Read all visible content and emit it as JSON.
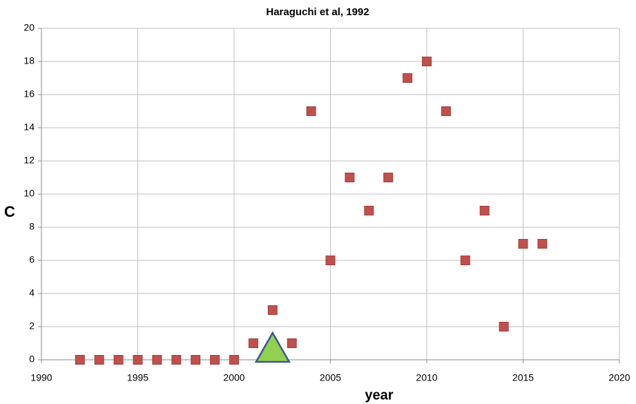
{
  "chart_data": {
    "type": "scatter",
    "title": "Haraguchi et al, 1992",
    "xlabel": "year",
    "ylabel": "C",
    "xlim": [
      1990,
      2020
    ],
    "xticks": [
      1990,
      1995,
      2000,
      2005,
      2010,
      2015,
      2020
    ],
    "ylim": [
      0,
      20
    ],
    "yticks": [
      0,
      2,
      4,
      6,
      8,
      10,
      12,
      14,
      16,
      18,
      20
    ],
    "grid": true,
    "series": [
      {
        "marker": "square",
        "color": "#c0504d",
        "x": [
          1992,
          1993,
          1994,
          1995,
          1996,
          1997,
          1998,
          1999,
          2000,
          2001,
          2002,
          2003,
          2004,
          2005,
          2006,
          2007,
          2008,
          2009,
          2010,
          2011,
          2012,
          2013,
          2014,
          2015,
          2016
        ],
        "values": [
          0,
          0,
          0,
          0,
          0,
          0,
          0,
          0,
          0,
          1,
          3,
          1,
          15,
          6,
          11,
          9,
          11,
          17,
          18,
          15,
          6,
          9,
          2,
          7,
          7
        ]
      },
      {
        "marker": "triangle",
        "color": "#92d050",
        "x": [
          2002
        ],
        "values": [
          0.75
        ]
      }
    ]
  }
}
